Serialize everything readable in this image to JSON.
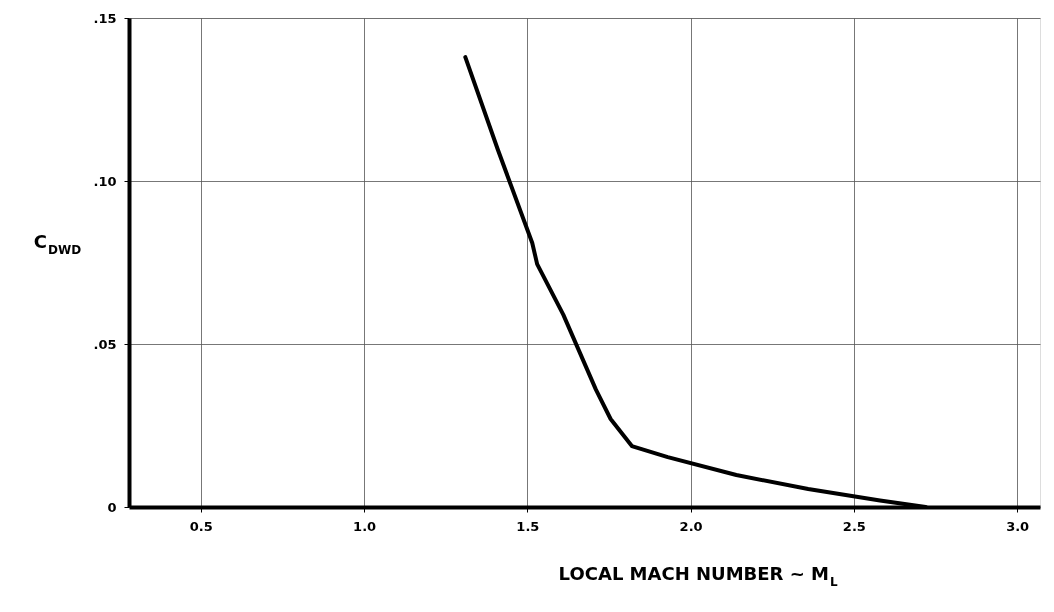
{
  "chart_data": {
    "type": "line",
    "xlabel": "LOCAL MACH NUMBER ~ M$_{L}$",
    "ylabel": "C$_{DWD}$",
    "x": [
      1.31,
      1.41,
      1.515,
      1.53,
      1.61,
      1.71,
      1.755,
      1.82,
      1.93,
      2.14,
      2.36,
      2.58,
      2.72
    ],
    "series": [
      {
        "color": "#000000",
        "values": [
          0.138,
          0.1095,
          0.081,
          0.0745,
          0.059,
          0.036,
          0.027,
          0.0187,
          0.0153,
          0.0098,
          0.0055,
          0.002,
          0
        ]
      }
    ],
    "xlim": [
      0.28,
      3.07
    ],
    "xticks": [
      {
        "value": 0.5,
        "label": "0.5"
      },
      {
        "value": 1.0,
        "label": "1.0"
      },
      {
        "value": 1.5,
        "label": "1.5"
      },
      {
        "value": 2.0,
        "label": "2.0"
      },
      {
        "value": 2.5,
        "label": "2.5"
      },
      {
        "value": 3.0,
        "label": "3.0"
      }
    ],
    "ylim": [
      0,
      0.15
    ],
    "yticks": [
      0,
      {
        "value": 0.05,
        "label": ".05"
      },
      {
        "value": 0.1,
        "label": ".10"
      },
      {
        "value": 0.15,
        "label": ".15"
      }
    ],
    "grid": true,
    "marker": "none",
    "line_style": "solid"
  }
}
